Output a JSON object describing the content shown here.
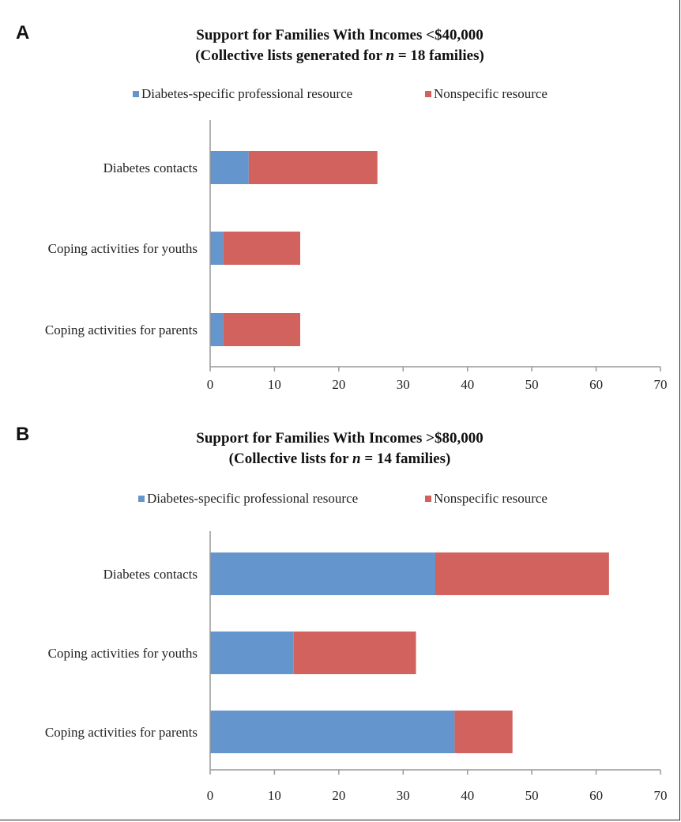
{
  "colors": {
    "diabetes_specific": "#6495cc",
    "nonspecific": "#d2625e",
    "axis": "#999999",
    "text": "#222222"
  },
  "panels": [
    {
      "letter": "A",
      "title_line1": "Support for Families With Incomes <$40,000",
      "title_line2_pre": "(Collective lists generated for ",
      "title_line2_n": "n",
      "title_line2_post": " = 18 families)"
    },
    {
      "letter": "B",
      "title_line1": "Support for Families With Incomes >$80,000",
      "title_line2_pre": "(Collective lists for ",
      "title_line2_n": "n",
      "title_line2_post": " = 14 families)"
    }
  ],
  "chart_data": [
    {
      "type": "bar",
      "orientation": "horizontal",
      "stacked": true,
      "title": "Support for Families With Incomes <$40,000 (Collective lists generated for n = 18 families)",
      "categories": [
        "Diabetes contacts",
        "Coping activities for youths",
        "Coping activities for parents"
      ],
      "series": [
        {
          "name": "Diabetes-specific professional resource",
          "values": [
            6,
            2,
            2
          ]
        },
        {
          "name": "Nonspecific resource",
          "values": [
            20,
            12,
            12
          ]
        }
      ],
      "xlim": [
        0,
        70
      ],
      "xticks": [
        "0",
        "10",
        "20",
        "30",
        "40",
        "50",
        "60",
        "70"
      ],
      "legend_position": "top",
      "grid": false
    },
    {
      "type": "bar",
      "orientation": "horizontal",
      "stacked": true,
      "title": "Support for Families With Incomes >$80,000 (Collective lists for n = 14 families)",
      "categories": [
        "Diabetes contacts",
        "Coping activities for youths",
        "Coping activities for parents"
      ],
      "series": [
        {
          "name": "Diabetes-specific professional resource",
          "values": [
            35,
            13,
            38
          ]
        },
        {
          "name": "Nonspecific resource",
          "values": [
            27,
            19,
            9
          ]
        }
      ],
      "xlim": [
        0,
        70
      ],
      "xticks": [
        "0",
        "10",
        "20",
        "30",
        "40",
        "50",
        "60",
        "70"
      ],
      "legend_position": "top",
      "grid": false
    }
  ]
}
